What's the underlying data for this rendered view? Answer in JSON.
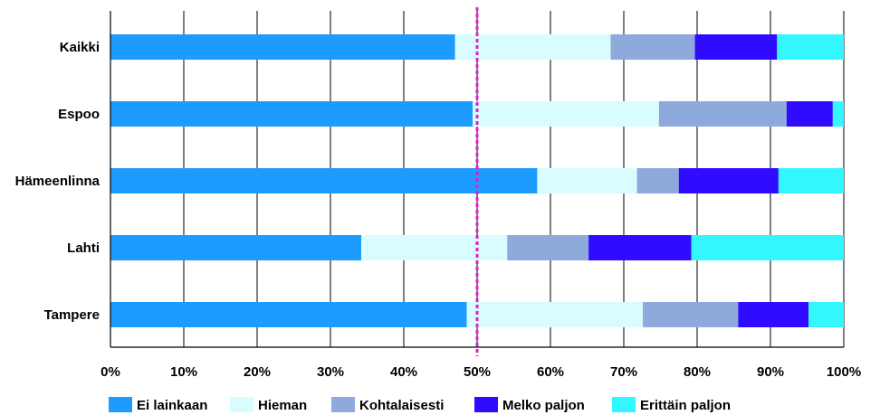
{
  "chart_data": {
    "type": "bar",
    "orientation": "horizontal",
    "stacked": true,
    "categories": [
      "Kaikki",
      "Espoo",
      "Hämeenlinna",
      "Lahti",
      "Tampere"
    ],
    "series": [
      {
        "name": "Ei lainkaan",
        "color": "#1e9bff",
        "values": [
          47.0,
          49.4,
          58.2,
          34.2,
          48.6
        ]
      },
      {
        "name": "Hieman",
        "color": "#d9fdff",
        "values": [
          21.2,
          25.4,
          13.6,
          19.9,
          24.0
        ]
      },
      {
        "name": "Kohtalaisesti",
        "color": "#8ea9db",
        "values": [
          11.5,
          17.4,
          5.7,
          11.1,
          13.0
        ]
      },
      {
        "name": "Melko paljon",
        "color": "#2f0bff",
        "values": [
          11.2,
          6.3,
          13.6,
          14.0,
          9.6
        ]
      },
      {
        "name": "Erittäin paljon",
        "color": "#33f6ff",
        "values": [
          9.1,
          1.5,
          8.9,
          20.8,
          4.8
        ]
      }
    ],
    "x_ticks": [
      "0%",
      "10%",
      "20%",
      "30%",
      "40%",
      "50%",
      "60%",
      "70%",
      "80%",
      "90%",
      "100%"
    ],
    "xlim": [
      0,
      100
    ],
    "reference_line": {
      "value": 50,
      "color": "#e020c8",
      "style": "dashed"
    },
    "grid": "vertical",
    "legend_position": "bottom"
  }
}
